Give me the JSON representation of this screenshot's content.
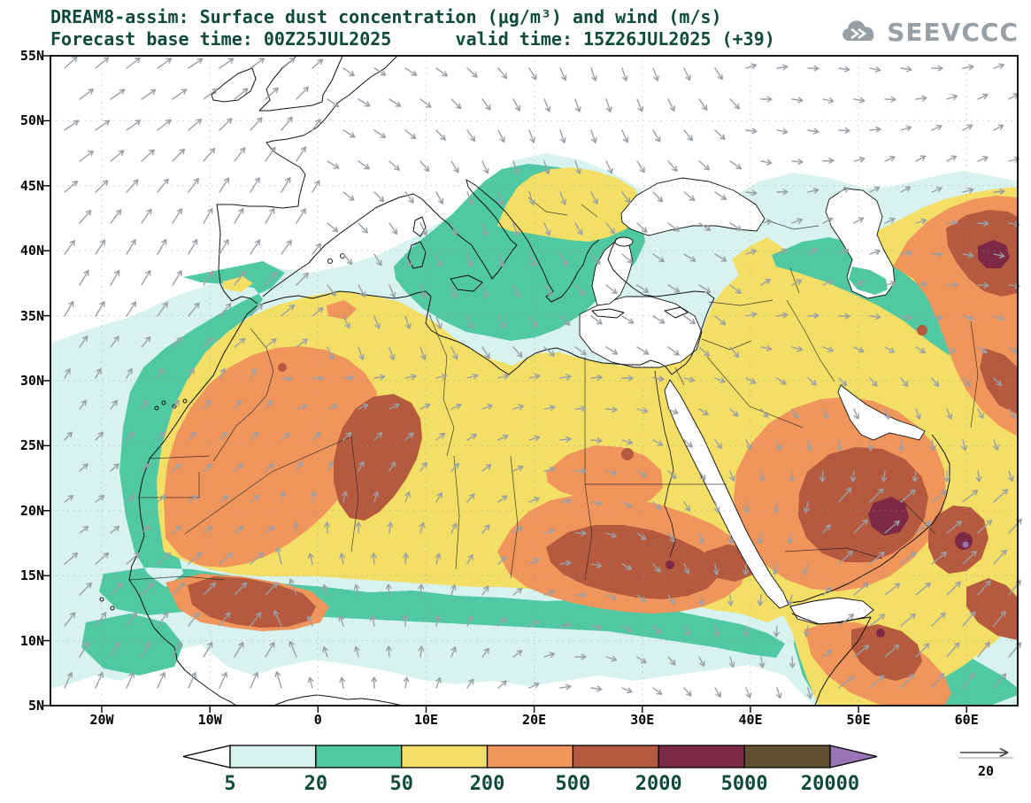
{
  "header": {
    "title": "DREAM8-assim: Surface dust concentration (μg/m³) and wind (m/s)",
    "subtitle": "Forecast base time: 00Z25JUL2025      valid time: 15Z26JUL2025 (+39)",
    "logo": "SEEVCCC"
  },
  "chart_data": {
    "type": "heatmap",
    "title": "DREAM8-assim: Surface dust concentration (μg/m³) and wind (m/s)",
    "model": "DREAM8-assim",
    "variable": "Surface dust concentration",
    "units": "μg/m³",
    "wind_units": "m/s",
    "forecast_base_time": "00Z25JUL2025",
    "valid_time": "15Z26JUL2025",
    "lead": "+39",
    "colorbar_levels": [
      "5",
      "20",
      "50",
      "200",
      "500",
      "2000",
      "5000",
      "20000"
    ],
    "colorbar_colors": [
      "#ffffff",
      "#d8f3ef",
      "#50c8a2",
      "#f3de66",
      "#f0955b",
      "#b55a3e",
      "#7d2946",
      "#5e5030",
      "#9b74b5"
    ],
    "wind_reference": "20",
    "lat_ticks": [
      "55N",
      "50N",
      "45N",
      "40N",
      "35N",
      "30N",
      "25N",
      "20N",
      "15N",
      "10N",
      "5N"
    ],
    "lon_ticks": [
      "20W",
      "10W",
      "0",
      "10E",
      "20E",
      "30E",
      "40E",
      "50E",
      "60E"
    ],
    "lat_range": [
      5,
      55
    ],
    "lon_range": [
      -24.7,
      65
    ],
    "grid": true,
    "legend_position": "bottom"
  }
}
